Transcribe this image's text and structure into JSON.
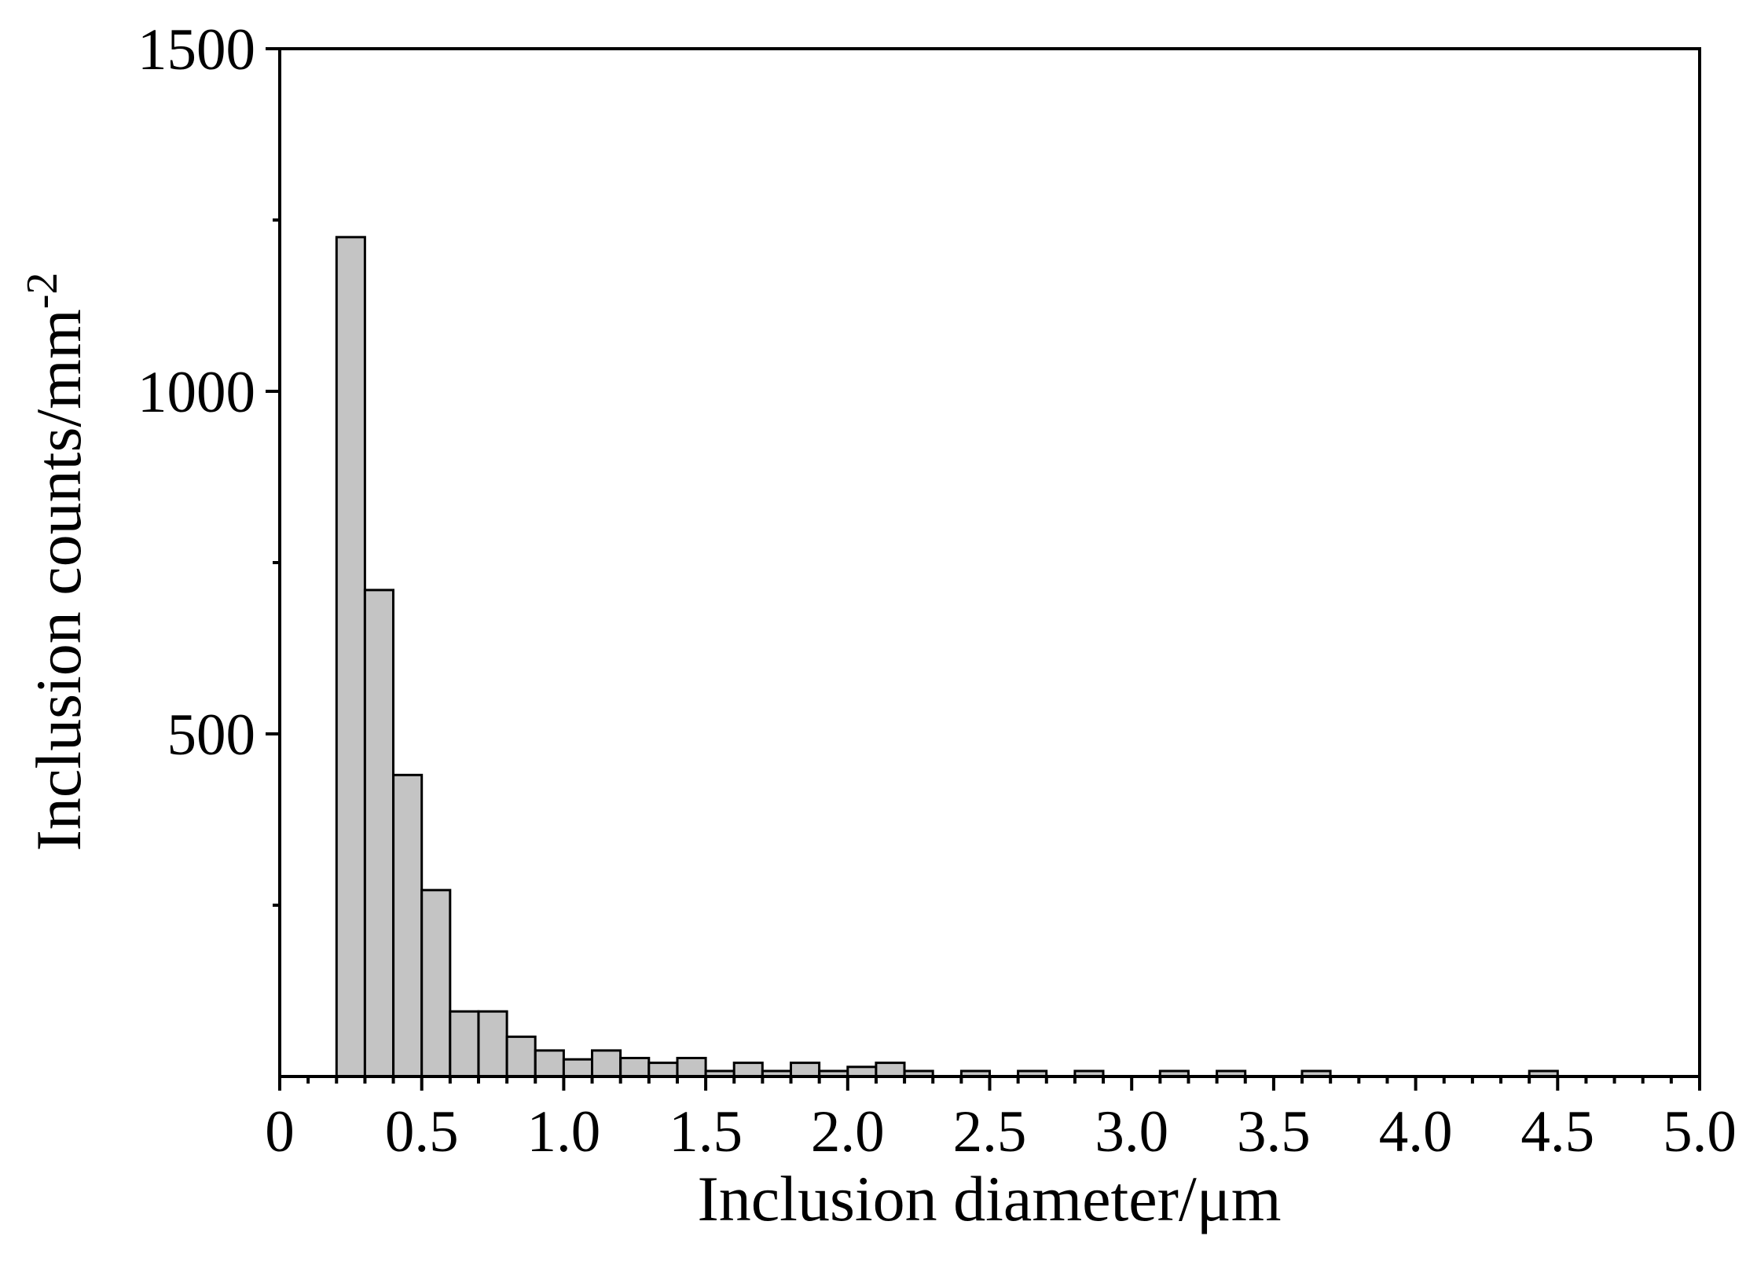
{
  "chart_data": {
    "type": "bar",
    "title": "",
    "xlabel": "Inclusion diameter/μm",
    "ylabel": "Inclusion counts/mm",
    "ylabel_superscript": "-2",
    "xlim": [
      0,
      5.0
    ],
    "ylim": [
      0,
      1500
    ],
    "x_ticks": [
      "0",
      "0.5",
      "1.0",
      "1.5",
      "2.0",
      "2.5",
      "3.0",
      "3.5",
      "4.0",
      "4.5",
      "5.0"
    ],
    "y_ticks": [
      "500",
      "1000",
      "1500"
    ],
    "x_tick_values": [
      0,
      0.5,
      1.0,
      1.5,
      2.0,
      2.5,
      3.0,
      3.5,
      4.0,
      4.5,
      5.0
    ],
    "y_tick_values": [
      500,
      1000,
      1500
    ],
    "y_minor_tick_values": [
      250,
      750,
      1250
    ],
    "bin_width": 0.1,
    "bar_color": "#c4c4c4",
    "edge_color": "#000000",
    "grid": false,
    "bins": [
      {
        "x": 0.2,
        "value": 1225
      },
      {
        "x": 0.3,
        "value": 710
      },
      {
        "x": 0.4,
        "value": 440
      },
      {
        "x": 0.5,
        "value": 272
      },
      {
        "x": 0.6,
        "value": 95
      },
      {
        "x": 0.7,
        "value": 95
      },
      {
        "x": 0.8,
        "value": 58
      },
      {
        "x": 0.9,
        "value": 38
      },
      {
        "x": 1.0,
        "value": 25
      },
      {
        "x": 1.1,
        "value": 38
      },
      {
        "x": 1.2,
        "value": 27
      },
      {
        "x": 1.3,
        "value": 20
      },
      {
        "x": 1.4,
        "value": 27
      },
      {
        "x": 1.5,
        "value": 8
      },
      {
        "x": 1.6,
        "value": 20
      },
      {
        "x": 1.7,
        "value": 8
      },
      {
        "x": 1.8,
        "value": 20
      },
      {
        "x": 1.9,
        "value": 8
      },
      {
        "x": 2.0,
        "value": 14
      },
      {
        "x": 2.1,
        "value": 20
      },
      {
        "x": 2.2,
        "value": 8
      },
      {
        "x": 2.4,
        "value": 8
      },
      {
        "x": 2.6,
        "value": 8
      },
      {
        "x": 2.8,
        "value": 8
      },
      {
        "x": 3.1,
        "value": 8
      },
      {
        "x": 3.3,
        "value": 8
      },
      {
        "x": 3.6,
        "value": 8
      },
      {
        "x": 4.4,
        "value": 8
      }
    ]
  }
}
